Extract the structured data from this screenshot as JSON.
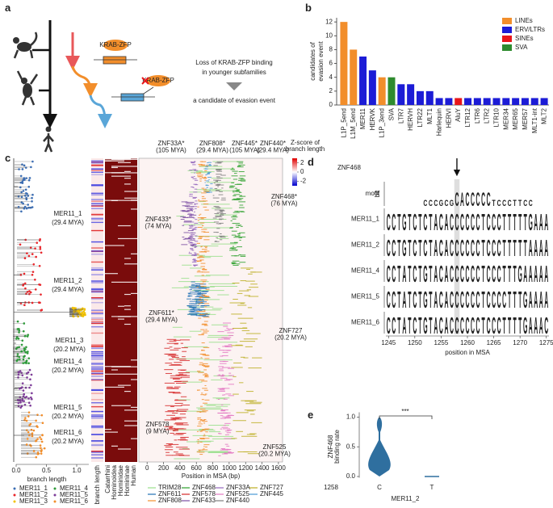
{
  "panel_a": {
    "label": "a",
    "protein_labels": [
      "KRAB-ZFP",
      "KRAB-ZFP"
    ],
    "caption_lines": [
      "Loss of KRAB-ZFP binding",
      "in younger subfamilies"
    ],
    "result": "a candidate of evasion event"
  },
  "chart_data": {
    "type": "bar",
    "panel_label": "b",
    "ylabel_lines": [
      "candidates of",
      "evasion event"
    ],
    "categories": [
      "L1P_5end",
      "L1M_5end",
      "MER11",
      "HERVK",
      "L1P_3end",
      "SVA",
      "LTR7",
      "HERVH",
      "LTR22",
      "MLT1",
      "Harlequin",
      "HERVI",
      "AluY",
      "LTR12",
      "LTR6",
      "LTR2",
      "LTR10",
      "MER34",
      "MER65",
      "MER57",
      "MLT1-int",
      "MLT2"
    ],
    "values": [
      12,
      8,
      7,
      5,
      4,
      4,
      3,
      3,
      2,
      2,
      1,
      1,
      1,
      1,
      1,
      1,
      1,
      1,
      1,
      1,
      1,
      1
    ],
    "colors": [
      "#f28e2b",
      "#f28e2b",
      "#1c1cd6",
      "#1c1cd6",
      "#f28e2b",
      "#2e8b2e",
      "#1c1cd6",
      "#1c1cd6",
      "#1c1cd6",
      "#1c1cd6",
      "#1c1cd6",
      "#1c1cd6",
      "#e8161b",
      "#1c1cd6",
      "#1c1cd6",
      "#1c1cd6",
      "#1c1cd6",
      "#1c1cd6",
      "#1c1cd6",
      "#1c1cd6",
      "#1c1cd6",
      "#1c1cd6"
    ],
    "legend": [
      {
        "name": "LINEs",
        "color": "#f28e2b"
      },
      {
        "name": "ERV/LTRs",
        "color": "#1c1cd6"
      },
      {
        "name": "SINEs",
        "color": "#e8161b"
      },
      {
        "name": "SVA",
        "color": "#2e8b2e"
      }
    ],
    "ylim": [
      0,
      12.6
    ],
    "yticks": [
      0,
      2,
      4,
      6,
      8,
      10,
      12
    ]
  },
  "panel_c": {
    "label": "c",
    "subfamilies": [
      {
        "name": "MER11_1",
        "age": "(29.4 MYA)",
        "color": "#3b6db3"
      },
      {
        "name": "MER11_2",
        "age": "(29.4 MYA)",
        "color": "#e8252a"
      },
      {
        "name": "MER11_3",
        "age": "(20.2 MYA)",
        "color": "#f2c200"
      },
      {
        "name": "MER11_4",
        "age": "(20.2 MYA)",
        "color": "#2e9a3a"
      },
      {
        "name": "MER11_5",
        "age": "(20.2 MYA)",
        "color": "#7d3c98"
      },
      {
        "name": "MER11_6",
        "age": "(20.2 MYA)",
        "color": "#f28e2b"
      }
    ],
    "branch_axis": {
      "label": "branch length",
      "xlim": [
        0,
        1.2
      ],
      "xticks": [
        {
          "value": 0,
          "label": "0.0"
        },
        {
          "value": 0.5,
          "label": "0.5"
        },
        {
          "value": 1,
          "label": "1.0"
        }
      ]
    },
    "columns": [
      "branch length",
      "Catarrhini",
      "Hominoidea",
      "Hominidae",
      "Homininae",
      "Human"
    ],
    "colorbar": {
      "title_lines": [
        "Z-score of",
        "branch length"
      ],
      "lim": [
        -3,
        3
      ],
      "ticks": [
        2,
        0,
        -2
      ]
    },
    "msa_axis": {
      "label": "Position in MSA (bp)",
      "xlim": [
        -100,
        1650
      ],
      "xticks": [
        0,
        200,
        400,
        600,
        800,
        1000,
        1200,
        1400,
        1600
      ]
    },
    "annotations": [
      {
        "text": "ZNF33A*",
        "age": "(105 MYA)",
        "color": "#9467bd"
      },
      {
        "text": "ZNF808*",
        "age": "(29.4 MYA)",
        "color": "#f28e2b"
      },
      {
        "text": "ZNF445*",
        "age": "(105 MYA)",
        "color": "#4a9ad4"
      },
      {
        "text": "ZNF440*",
        "age": "(29.4 MYA)",
        "color": "#7f7f7f"
      },
      {
        "text": "ZNF468*",
        "age": "(76 MYA)",
        "color": "#2ca02c"
      },
      {
        "text": "ZNF433*",
        "age": "(74 MYA)",
        "color": "#7b4ea3"
      },
      {
        "text": "ZNF611*",
        "age": "(29.4 MYA)",
        "color": "#1f6fb4"
      },
      {
        "text": "ZNF727",
        "age": "(20.2 MYA)",
        "color": "#bcae22"
      },
      {
        "text": "ZNF578",
        "age": "(9 MYA)",
        "color": "#d62728"
      },
      {
        "text": "ZNF525",
        "age": "(20.2 MYA)",
        "color": "#e377c2"
      }
    ],
    "znf_legend": [
      {
        "name": "TRIM28",
        "color": "#98df8a"
      },
      {
        "name": "ZNF468",
        "color": "#2ca02c"
      },
      {
        "name": "ZNF33A",
        "color": "#9467bd"
      },
      {
        "name": "ZNF727",
        "color": "#bcae22"
      },
      {
        "name": "ZNF611",
        "color": "#1f6fb4"
      },
      {
        "name": "ZNF578",
        "color": "#d62728"
      },
      {
        "name": "ZNF525",
        "color": "#e377c2"
      },
      {
        "name": "ZNF445",
        "color": "#4a9ad4"
      },
      {
        "name": "ZNF808",
        "color": "#f28e2b"
      },
      {
        "name": "ZNF433",
        "color": "#7b4ea3"
      },
      {
        "name": "ZNF440",
        "color": "#7f7f7f"
      }
    ]
  },
  "panel_d": {
    "label": "d",
    "title": "ZNF468",
    "ylabel": "bit",
    "xlabel": "position in MSA",
    "xlim": [
      1244.5,
      1275.5
    ],
    "xticks": [
      1245,
      1250,
      1255,
      1260,
      1265,
      1270,
      1275
    ],
    "highlight": 1258,
    "motif": {
      "name": "motif",
      "sequence": "       CCCGCGCACCCCCTCCCTTCC   "
    },
    "rows": [
      {
        "name": "MER11_1",
        "color": "#3b6db3",
        "sequence": "CCTGTCTCTACACCCCCCTCCCTTTTTGAAA"
      },
      {
        "name": "MER11_2",
        "color": "#e8252a",
        "sequence": "CCTGTCTCTACACCCCCCTCCCTTTTTAAAA"
      },
      {
        "name": "MER11_4",
        "color": "#2e9a3a",
        "sequence": "CCTATCTGTACACCCCCCTCCCTTTGAAAAA"
      },
      {
        "name": "MER11_5",
        "color": "#7d3c98",
        "sequence": "CCTATCTGTACACCCCCCTCCCCTTTGAAAA"
      },
      {
        "name": "MER11_6",
        "color": "#f28e2b",
        "sequence": "CCTATCTGTACACCCCCCTCCCTTTTGAAAC"
      }
    ]
  },
  "panel_e": {
    "label": "e",
    "ylabel_lines": [
      "ZNF468",
      "binding rate"
    ],
    "ylim": [
      -0.02,
      1.08
    ],
    "yticks": [
      {
        "value": 0,
        "label": "0.0"
      },
      {
        "value": 0.5,
        "label": "0.5"
      },
      {
        "value": 1,
        "label": "1.0"
      }
    ],
    "position": "1258",
    "groups": [
      "C",
      "T"
    ],
    "subfamily": "MER11_2",
    "significance": "***"
  }
}
